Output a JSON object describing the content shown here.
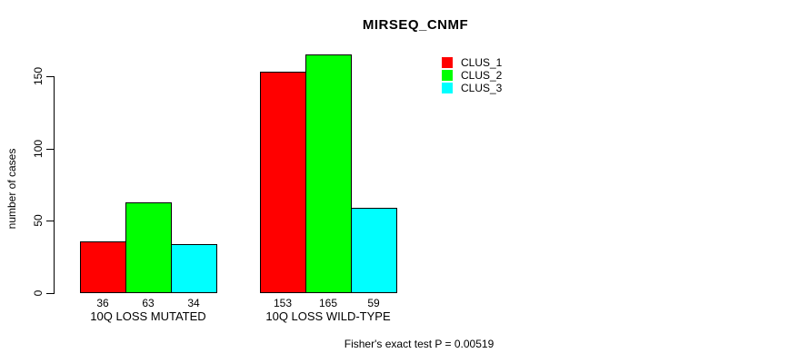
{
  "chart_data": {
    "type": "bar",
    "title": "MIRSEQ_CNMF",
    "ylabel": "number of cases",
    "yticks": [
      0,
      50,
      100,
      150
    ],
    "ylim": [
      0,
      165
    ],
    "grid": false,
    "legend_position": "top-right-inside",
    "categories": [
      "10Q LOSS MUTATED",
      "10Q LOSS WILD-TYPE"
    ],
    "series": [
      {
        "name": "CLUS_1",
        "color": "#ff0000",
        "values": [
          36,
          153
        ]
      },
      {
        "name": "CLUS_2",
        "color": "#00ff00",
        "values": [
          63,
          165
        ]
      },
      {
        "name": "CLUS_3",
        "color": "#00ffff",
        "values": [
          34,
          59
        ]
      }
    ],
    "bar_value_labels": [
      [
        36,
        63,
        34
      ],
      [
        153,
        165,
        59
      ]
    ],
    "footnote": "Fisher's exact test P = 0.00519"
  }
}
